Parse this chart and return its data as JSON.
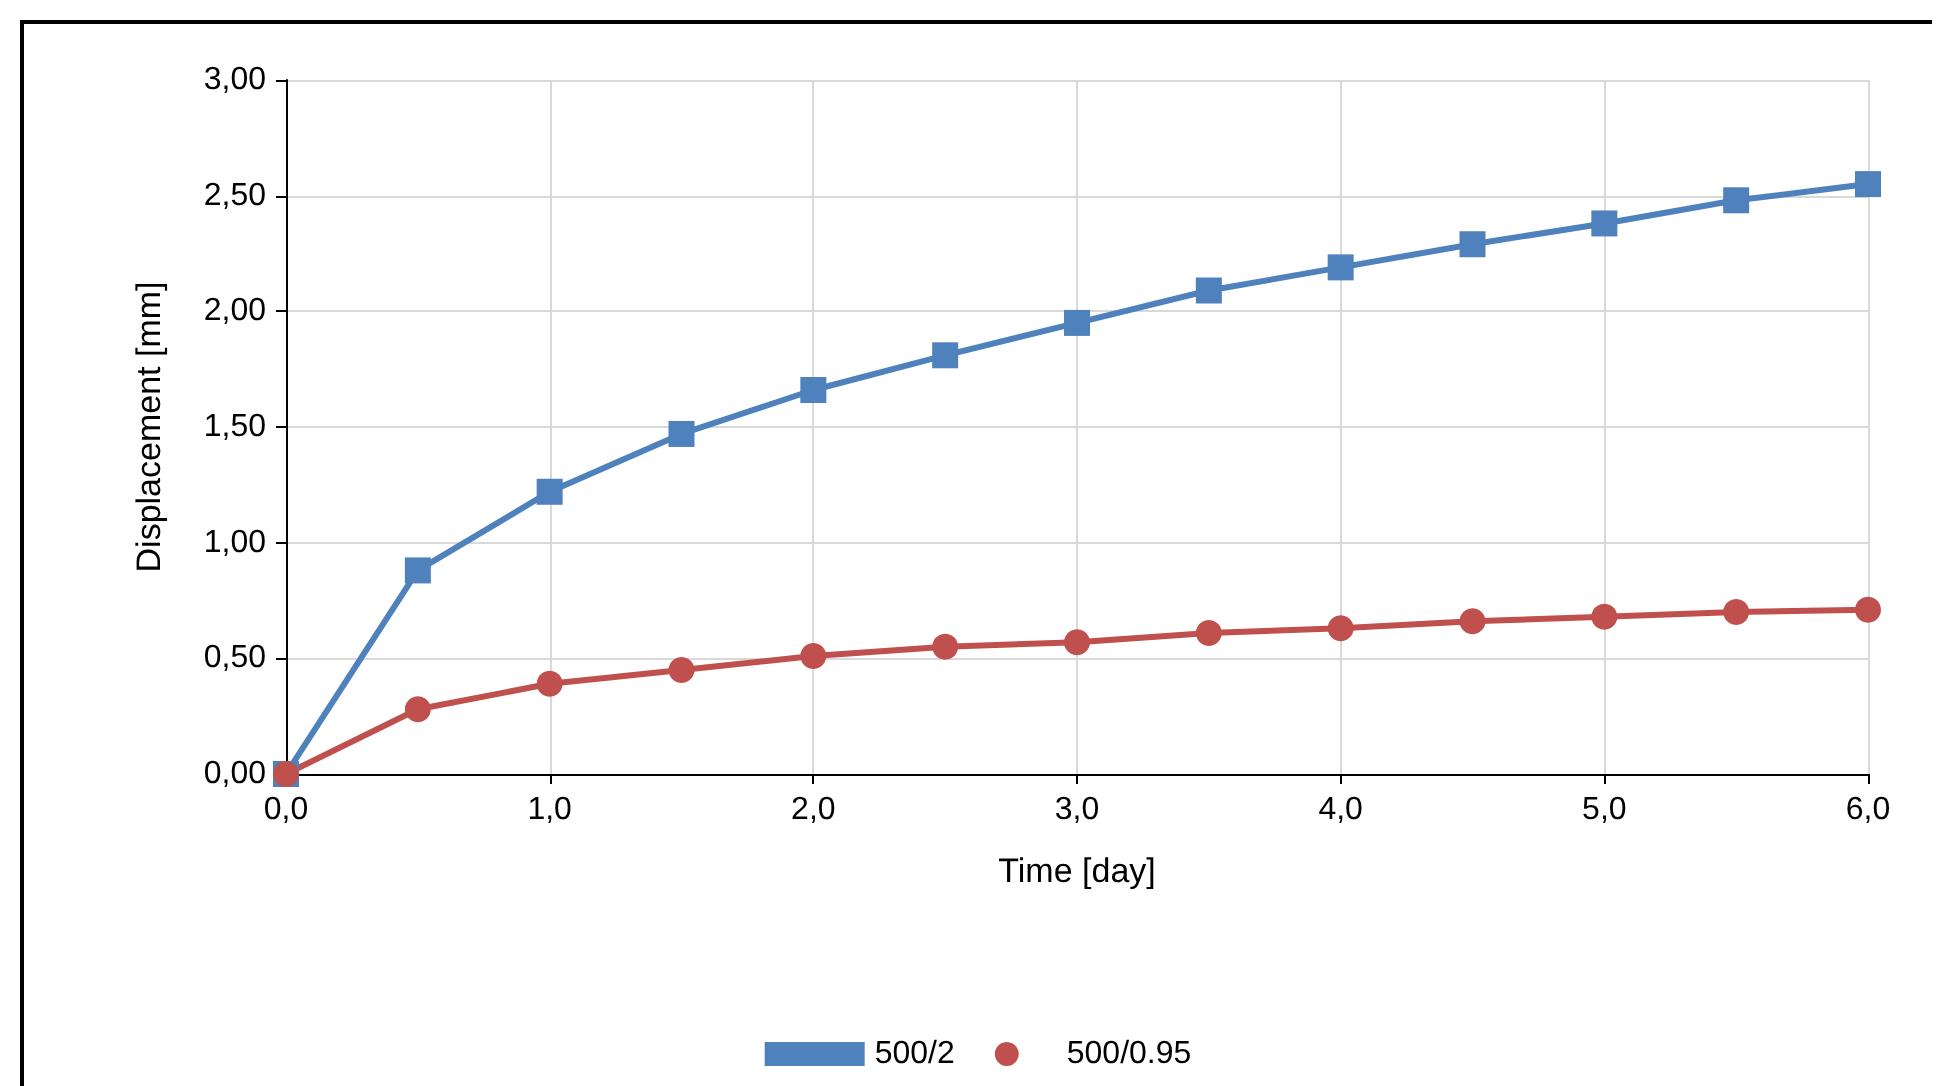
{
  "chart_data": {
    "type": "line",
    "xlabel": "Time [day]",
    "ylabel": "Displacement [mm]",
    "x": [
      0,
      0.5,
      1,
      1.5,
      2,
      2.5,
      3,
      3.5,
      4,
      4.5,
      5,
      5.5,
      6
    ],
    "series": [
      {
        "name": "500/2",
        "color": "#4f81bd",
        "marker": "square",
        "values": [
          0,
          0.88,
          1.22,
          1.47,
          1.66,
          1.81,
          1.95,
          2.09,
          2.19,
          2.29,
          2.38,
          2.48,
          2.55
        ]
      },
      {
        "name": "500/0.95",
        "color": "#c0504d",
        "marker": "circle",
        "values": [
          0,
          0.28,
          0.39,
          0.45,
          0.51,
          0.55,
          0.57,
          0.61,
          0.63,
          0.66,
          0.68,
          0.7,
          0.71
        ]
      }
    ],
    "xlim": [
      0,
      6
    ],
    "xticks": [
      {
        "value": 0,
        "label": "0,0"
      },
      {
        "value": 1,
        "label": "1,0"
      },
      {
        "value": 2,
        "label": "2,0"
      },
      {
        "value": 3,
        "label": "3,0"
      },
      {
        "value": 4,
        "label": "4,0"
      },
      {
        "value": 5,
        "label": "5,0"
      },
      {
        "value": 6,
        "label": "6,0"
      }
    ],
    "ylim": [
      0,
      3
    ],
    "yticks": [
      {
        "value": 0,
        "label": "0,00"
      },
      {
        "value": 0.5,
        "label": "0,50"
      },
      {
        "value": 1,
        "label": "1,00"
      },
      {
        "value": 1.5,
        "label": "1,50"
      },
      {
        "value": 2,
        "label": "2,00"
      },
      {
        "value": 2.5,
        "label": "2,50"
      },
      {
        "value": 3,
        "label": "3,00"
      }
    ],
    "grid": true,
    "legend": "bottom",
    "line_style": "solid"
  }
}
